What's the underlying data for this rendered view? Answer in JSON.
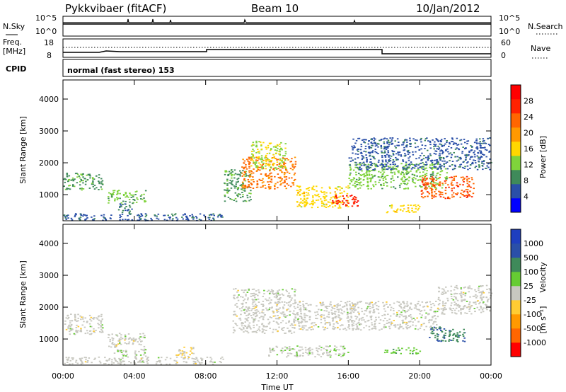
{
  "header": {
    "title": "Pykkvibaer (fitACF)",
    "beam": "Beam 10",
    "date": "10/Jan/2012"
  },
  "top_panels": {
    "nsky_label": "N.Sky",
    "nsky_ticks": [
      "10^5",
      "10^0"
    ],
    "nsearch_label": "N.Search",
    "nsearch_ticks": [
      "10^5",
      "10^0"
    ],
    "freq_label": "Freq.",
    "freq_unit": "[MHz]",
    "freq_ticks": [
      "18",
      "8"
    ],
    "nave_label": "Nave",
    "nave_ticks": [
      "60",
      "0"
    ],
    "cpid_label": "CPID",
    "cpid_value": "normal (fast stereo) 153"
  },
  "colors": {
    "power": [
      "#0000ff",
      "#2a4fa8",
      "#3f8a5a",
      "#7fd33b",
      "#ffd700",
      "#ff9900",
      "#ff6600",
      "#ff2200",
      "#ff0000"
    ],
    "velocity": [
      "#ff0000",
      "#ff6600",
      "#ff9900",
      "#ffcc33",
      "#c8c8c0",
      "#66cc33",
      "#3f8a5a",
      "#2a4fa8",
      "#1f3fbf"
    ]
  },
  "chart_data": [
    {
      "type": "heatmap",
      "title": "Power",
      "xlabel": "Time UT",
      "ylabel": "Slant Range [km]",
      "x_ticks": [
        "00:00",
        "04:00",
        "08:00",
        "12:00",
        "16:00",
        "20:00",
        "00:00"
      ],
      "xlim_hours": [
        0,
        24
      ],
      "y_ticks": [
        "1000",
        "2000",
        "3000",
        "4000"
      ],
      "ylim_km": [
        180,
        4600
      ],
      "colorbar_label": "Power [dB]",
      "colorbar_ticks": [
        "4",
        "8",
        "12",
        "16",
        "20",
        "24",
        "28"
      ],
      "colorbar_range": [
        0,
        32
      ],
      "scatter_regions": [
        {
          "t": [
            0.0,
            2.2
          ],
          "r": [
            1150,
            1700
          ],
          "v": 10
        },
        {
          "t": [
            2.5,
            4.6
          ],
          "r": [
            750,
            1150
          ],
          "v": 12
        },
        {
          "t": [
            3.0,
            3.9
          ],
          "r": [
            400,
            750
          ],
          "v": 8
        },
        {
          "t": [
            0.0,
            9.0
          ],
          "r": [
            200,
            420
          ],
          "v": 6
        },
        {
          "t": [
            9.0,
            10.5
          ],
          "r": [
            800,
            1800
          ],
          "v": 10
        },
        {
          "t": [
            10.0,
            13.0
          ],
          "r": [
            1200,
            2200
          ],
          "v": 22
        },
        {
          "t": [
            10.5,
            12.5
          ],
          "r": [
            1800,
            2700
          ],
          "v": 14
        },
        {
          "t": [
            13.0,
            16.0
          ],
          "r": [
            600,
            1300
          ],
          "v": 16
        },
        {
          "t": [
            15.0,
            16.5
          ],
          "r": [
            650,
            1000
          ],
          "v": 27
        },
        {
          "t": [
            16.0,
            21.5
          ],
          "r": [
            1200,
            2000
          ],
          "v": 12
        },
        {
          "t": [
            20.0,
            23.0
          ],
          "r": [
            900,
            1600
          ],
          "v": 24
        },
        {
          "t": [
            16.0,
            24.0
          ],
          "r": [
            1800,
            2800
          ],
          "v": 6
        },
        {
          "t": [
            18.0,
            20.0
          ],
          "r": [
            450,
            700
          ],
          "v": 16
        }
      ]
    },
    {
      "type": "heatmap",
      "title": "Velocity",
      "xlabel": "Time UT",
      "ylabel": "Slant Range [km]",
      "x_ticks": [
        "00:00",
        "04:00",
        "08:00",
        "12:00",
        "16:00",
        "20:00",
        "00:00"
      ],
      "xlim_hours": [
        0,
        24
      ],
      "y_ticks": [
        "1000",
        "2000",
        "3000",
        "4000"
      ],
      "ylim_km": [
        180,
        4600
      ],
      "colorbar_label": "Velocity",
      "colorbar_unit": "[m s⁻¹]",
      "colorbar_ticks": [
        "1000",
        "500",
        "100",
        "25",
        "-25",
        "-100",
        "-500",
        "-1000"
      ],
      "colorbar_range": [
        -1200,
        1200
      ],
      "scatter_regions": [
        {
          "t": [
            0.0,
            2.2
          ],
          "r": [
            1150,
            1800
          ],
          "v": 0
        },
        {
          "t": [
            2.5,
            4.6
          ],
          "r": [
            750,
            1200
          ],
          "v": 0
        },
        {
          "t": [
            2.8,
            4.6
          ],
          "r": [
            450,
            700
          ],
          "v": 70
        },
        {
          "t": [
            6.3,
            7.3
          ],
          "r": [
            400,
            800
          ],
          "v": -150
        },
        {
          "t": [
            9.5,
            13.0
          ],
          "r": [
            1200,
            2600
          ],
          "v": 0
        },
        {
          "t": [
            11.5,
            16.0
          ],
          "r": [
            450,
            800
          ],
          "v": 70
        },
        {
          "t": [
            13.0,
            21.0
          ],
          "r": [
            1300,
            2200
          ],
          "v": 0
        },
        {
          "t": [
            18.0,
            20.0
          ],
          "r": [
            550,
            750
          ],
          "v": 300
        },
        {
          "t": [
            20.5,
            22.5
          ],
          "r": [
            900,
            1400
          ],
          "v": 600
        },
        {
          "t": [
            21.0,
            24.0
          ],
          "r": [
            1800,
            2700
          ],
          "v": 0
        },
        {
          "t": [
            0.0,
            9.0
          ],
          "r": [
            220,
            450
          ],
          "v": 0
        }
      ]
    }
  ]
}
